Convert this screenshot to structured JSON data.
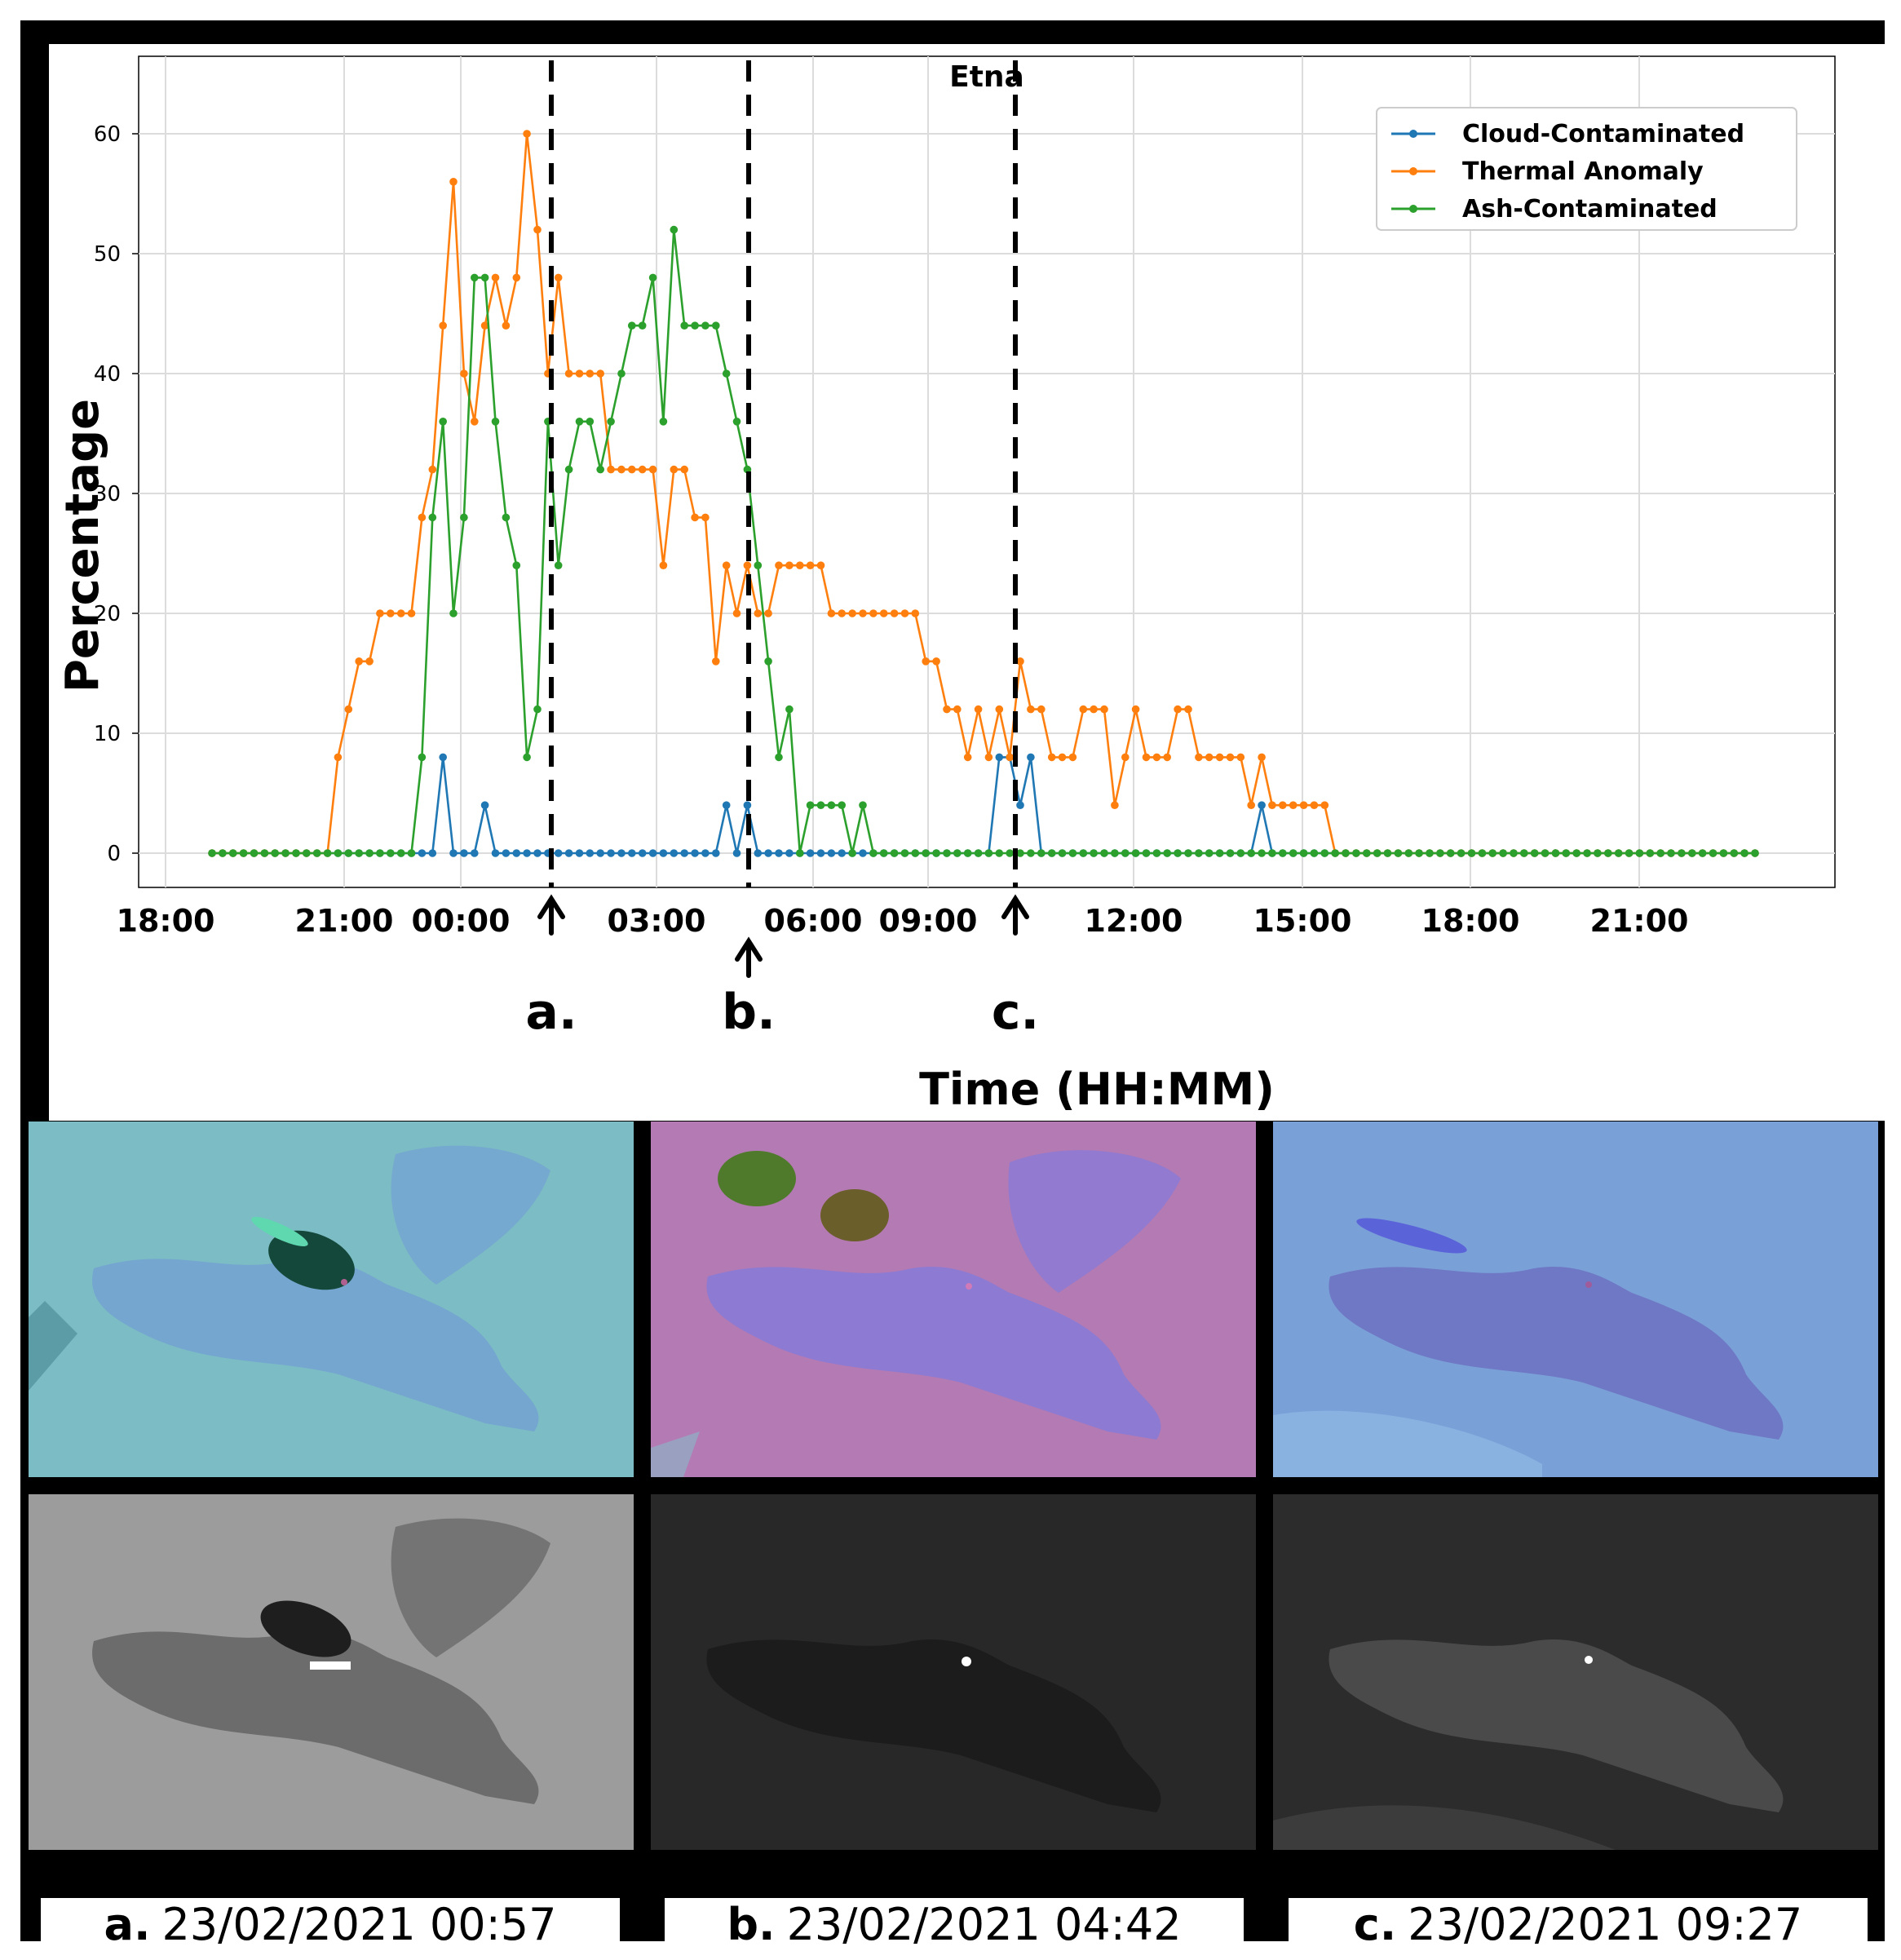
{
  "chart_data": {
    "type": "line",
    "title": "Etna",
    "xlabel": "Time (HH:MM)",
    "ylabel": "Percentage",
    "ylim": [
      0,
      60
    ],
    "yticks": [
      0,
      10,
      20,
      30,
      40,
      50,
      60
    ],
    "xtick_labels": [
      "18:00",
      "21:00",
      "00:00",
      "03:00",
      "06:00",
      "09:00",
      "12:00",
      "15:00",
      "18:00",
      "21:00"
    ],
    "grid": true,
    "legend_position": "top-right",
    "series": [
      {
        "name": "Cloud-Contaminated",
        "color": "#1f77b4",
        "values": [
          0,
          0,
          0,
          0,
          0,
          0,
          0,
          0,
          0,
          0,
          0,
          0,
          0,
          0,
          0,
          0,
          0,
          0,
          0,
          0,
          0,
          0,
          8,
          0,
          0,
          0,
          4,
          0,
          0,
          0,
          0,
          0,
          0,
          0,
          0,
          0,
          0,
          0,
          0,
          0,
          0,
          0,
          0,
          0,
          0,
          0,
          0,
          0,
          0,
          4,
          0,
          4,
          0,
          0,
          0,
          0,
          0,
          0,
          0,
          0,
          0,
          0,
          0,
          0,
          0,
          0,
          0,
          0,
          0,
          0,
          0,
          0,
          0,
          0,
          0,
          8,
          8,
          4,
          8,
          0,
          0,
          0,
          0,
          0,
          0,
          0,
          0,
          0,
          0,
          0,
          0,
          0,
          0,
          0,
          0,
          0,
          0,
          0,
          0,
          0,
          4,
          0,
          0,
          0,
          0,
          0,
          0,
          0,
          0,
          0,
          0,
          0,
          0,
          0,
          0,
          0,
          0,
          0,
          0,
          0,
          0,
          0,
          0,
          0,
          0,
          0,
          0,
          0,
          0,
          0,
          0,
          0,
          0,
          0,
          0,
          0,
          0,
          0,
          0,
          0,
          0,
          0,
          0,
          0,
          0,
          0,
          0,
          0
        ]
      },
      {
        "name": "Thermal Anomaly",
        "color": "#ff7f0e",
        "values": [
          0,
          0,
          0,
          0,
          0,
          0,
          0,
          0,
          0,
          0,
          0,
          0,
          8,
          12,
          16,
          16,
          20,
          20,
          20,
          20,
          28,
          32,
          44,
          56,
          40,
          36,
          44,
          48,
          44,
          48,
          60,
          52,
          40,
          48,
          40,
          40,
          40,
          40,
          32,
          32,
          32,
          32,
          32,
          24,
          32,
          32,
          28,
          28,
          16,
          24,
          20,
          24,
          20,
          20,
          24,
          24,
          24,
          24,
          24,
          20,
          20,
          20,
          20,
          20,
          20,
          20,
          20,
          20,
          16,
          16,
          12,
          12,
          8,
          12,
          8,
          12,
          8,
          16,
          12,
          12,
          8,
          8,
          8,
          12,
          12,
          12,
          4,
          8,
          12,
          8,
          8,
          8,
          12,
          12,
          8,
          8,
          8,
          8,
          8,
          4,
          8,
          4,
          4,
          4,
          4,
          4,
          4,
          0,
          0,
          0,
          0,
          0,
          0,
          0,
          0,
          0,
          0,
          0,
          0,
          0,
          0,
          0,
          0,
          0,
          0,
          0,
          0,
          0,
          0,
          0,
          0,
          0,
          0,
          0,
          0,
          0,
          0,
          0,
          0,
          0,
          0,
          0,
          0,
          0,
          0,
          0,
          0,
          0
        ]
      },
      {
        "name": "Ash-Contaminated",
        "color": "#2ca02c",
        "values": [
          0,
          0,
          0,
          0,
          0,
          0,
          0,
          0,
          0,
          0,
          0,
          0,
          0,
          0,
          0,
          0,
          0,
          0,
          0,
          0,
          8,
          28,
          36,
          20,
          28,
          48,
          48,
          36,
          28,
          24,
          8,
          12,
          36,
          24,
          32,
          36,
          36,
          32,
          36,
          40,
          44,
          44,
          48,
          36,
          52,
          44,
          44,
          44,
          44,
          40,
          36,
          32,
          24,
          16,
          8,
          12,
          0,
          4,
          4,
          4,
          4,
          0,
          4,
          0,
          0,
          0,
          0,
          0,
          0,
          0,
          0,
          0,
          0,
          0,
          0,
          0,
          0,
          0,
          0,
          0,
          0,
          0,
          0,
          0,
          0,
          0,
          0,
          0,
          0,
          0,
          0,
          0,
          0,
          0,
          0,
          0,
          0,
          0,
          0,
          0,
          0,
          0,
          0,
          0,
          0,
          0,
          0,
          0,
          0,
          0,
          0,
          0,
          0,
          0,
          0,
          0,
          0,
          0,
          0,
          0,
          0,
          0,
          0,
          0,
          0,
          0,
          0,
          0,
          0,
          0,
          0,
          0,
          0,
          0,
          0,
          0,
          0,
          0,
          0,
          0,
          0,
          0,
          0,
          0,
          0,
          0,
          0,
          0
        ]
      }
    ],
    "markers": [
      {
        "label": "a.",
        "time": "00:57"
      },
      {
        "label": "b.",
        "time": "04:42"
      },
      {
        "label": "c.",
        "time": "09:27"
      }
    ]
  },
  "captions": [
    {
      "letter": "a.",
      "datetime": "23/02/2021 00:57"
    },
    {
      "letter": "b.",
      "datetime": "23/02/2021 04:42"
    },
    {
      "letter": "c.",
      "datetime": "23/02/2021 09:27"
    }
  ]
}
